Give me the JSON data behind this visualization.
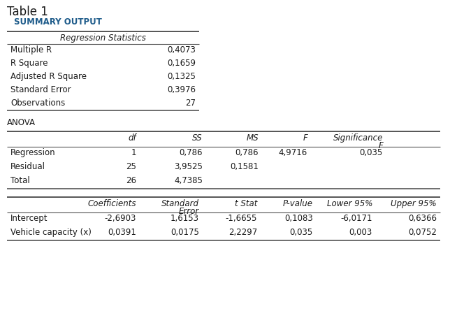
{
  "title": "Table 1",
  "subtitle": "SUMMARY OUTPUT",
  "bg_color": "#ffffff",
  "text_color": "#1a1a1a",
  "blue_color": "#1F5C8B",
  "reg_stats": {
    "header": "Regression Statistics",
    "rows": [
      [
        "Multiple R",
        "0,4073"
      ],
      [
        "R Square",
        "0,1659"
      ],
      [
        "Adjusted R Square",
        "0,1325"
      ],
      [
        "Standard Error",
        "0,3976"
      ],
      [
        "Observations",
        "27"
      ]
    ]
  },
  "anova": {
    "label": "ANOVA",
    "col_headers_line1": [
      "",
      "df",
      "SS",
      "MS",
      "F",
      "Significance"
    ],
    "col_headers_line2": [
      "",
      "",
      "",
      "",
      "",
      "F"
    ],
    "rows": [
      [
        "Regression",
        "1",
        "0,786",
        "0,786",
        "4,9716",
        "0,035"
      ],
      [
        "Residual",
        "25",
        "3,9525",
        "0,1581",
        "",
        ""
      ],
      [
        "Total",
        "26",
        "4,7385",
        "",
        "",
        ""
      ]
    ]
  },
  "coeff": {
    "col_headers_line1": [
      "",
      "Coefficients",
      "Standard",
      "t Stat",
      "P-value",
      "Lower 95%",
      "Upper 95%"
    ],
    "col_headers_line2": [
      "",
      "",
      "Error",
      "",
      "",
      "",
      ""
    ],
    "rows": [
      [
        "Intercept",
        "-2,6903",
        "1,6153",
        "-1,6655",
        "0,1083",
        "-6,0171",
        "0,6366"
      ],
      [
        "Vehicle capacity (x)",
        "0,0391",
        "0,0175",
        "2,2297",
        "0,035",
        "0,003",
        "0,0752"
      ]
    ]
  }
}
